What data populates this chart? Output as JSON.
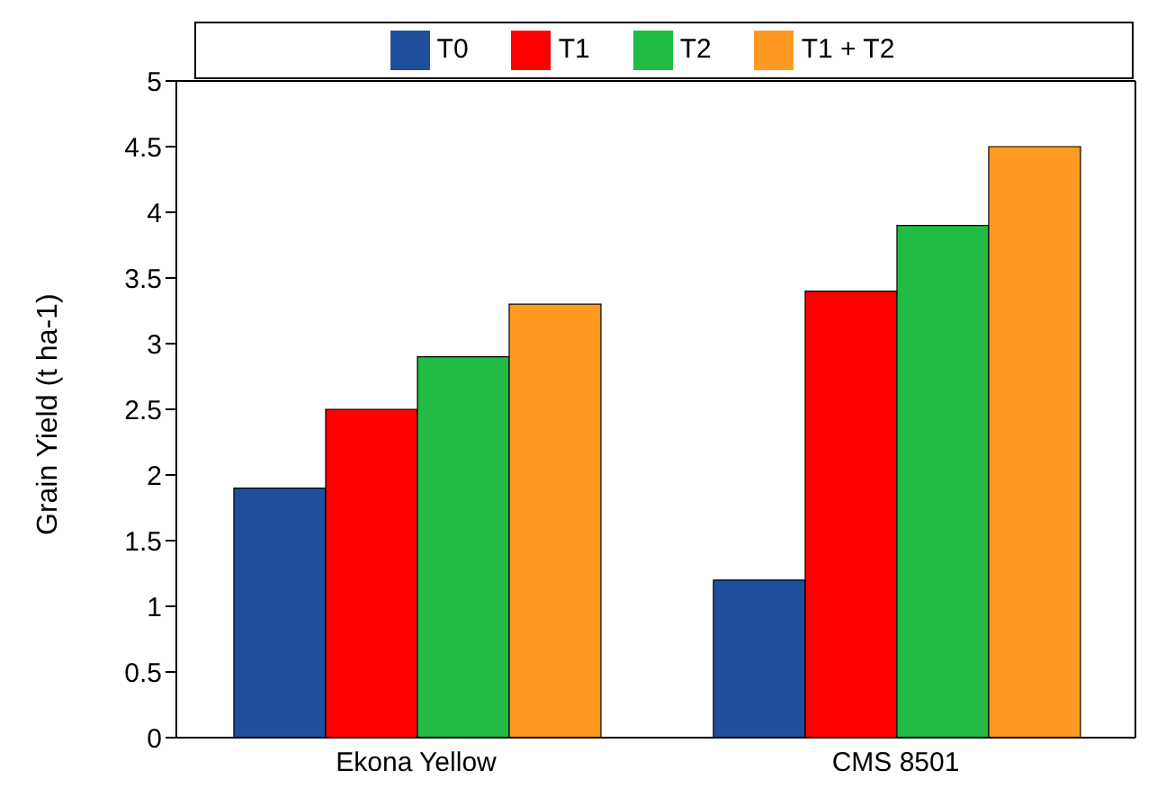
{
  "chart_data": {
    "type": "bar",
    "ylabel": "Grain Yield (t ha-1)",
    "categories": [
      "Ekona Yellow",
      "CMS 8501"
    ],
    "series": [
      {
        "name": "T0",
        "color": "#1f4e9c",
        "values": [
          1.9,
          1.2
        ]
      },
      {
        "name": "T1",
        "color": "#ff0000",
        "values": [
          2.5,
          3.4
        ]
      },
      {
        "name": "T2",
        "color": "#22bb44",
        "values": [
          2.9,
          3.9
        ]
      },
      {
        "name": "T1 + T2",
        "color": "#ff9922",
        "values": [
          3.3,
          4.5
        ]
      }
    ],
    "ylim": [
      0,
      5
    ],
    "yticks": [
      0,
      0.5,
      1,
      1.5,
      2,
      2.5,
      3,
      3.5,
      4,
      4.5,
      5
    ],
    "legend": "top",
    "grid": false
  }
}
